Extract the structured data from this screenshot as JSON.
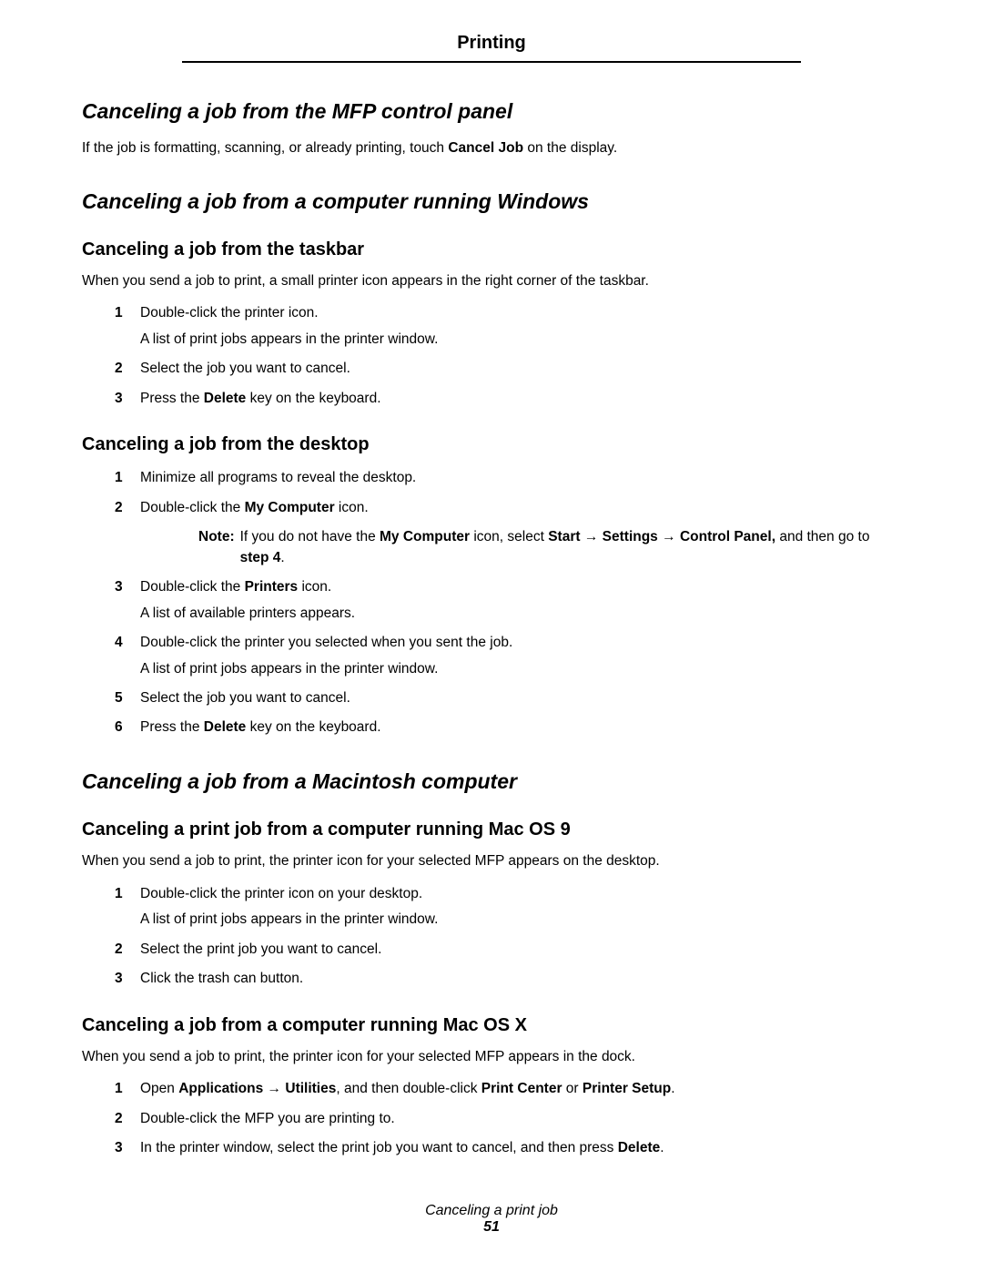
{
  "header": "Printing",
  "sections": {
    "mfp": {
      "title": "Canceling a job from the MFP control panel",
      "intro_pre": "If the job is formatting, scanning, or already printing, touch ",
      "intro_bold": "Cancel Job",
      "intro_post": " on the display."
    },
    "windows": {
      "title": "Canceling a job from a computer running Windows",
      "taskbar": {
        "title": "Canceling a job from the taskbar",
        "intro": "When you send a job to print, a small printer icon appears in the right corner of the taskbar.",
        "steps": {
          "s1a": "Double-click the printer icon.",
          "s1b": "A list of print jobs appears in the printer window.",
          "s2": "Select the job you want to cancel.",
          "s3_pre": "Press the ",
          "s3_b": "Delete",
          "s3_post": " key on the keyboard."
        }
      },
      "desktop": {
        "title": "Canceling a job from the desktop",
        "steps": {
          "s1": "Minimize all programs to reveal the desktop.",
          "s2_pre": "Double-click the ",
          "s2_b": "My Computer",
          "s2_post": " icon.",
          "note_label": "Note:",
          "note_pre": "If you do not have the ",
          "note_b1": "My Computer",
          "note_mid1": " icon, select ",
          "note_b2": "Start",
          "arrow": " → ",
          "note_b3": "Settings",
          "note_b4": "Control Panel,",
          "note_mid2": " and then go to ",
          "note_b5": "step 4",
          "note_end": ".",
          "s3_pre": "Double-click the ",
          "s3_b": "Printers",
          "s3_post": " icon.",
          "s3b": "A list of available printers appears.",
          "s4a": "Double-click the printer you selected when you sent the job.",
          "s4b": "A list of print jobs appears in the printer window.",
          "s5": "Select the job you want to cancel.",
          "s6_pre": "Press the ",
          "s6_b": "Delete",
          "s6_post": " key on the keyboard."
        }
      }
    },
    "mac": {
      "title": "Canceling a job from a Macintosh computer",
      "os9": {
        "title": "Canceling a print job from a computer running Mac OS 9",
        "intro": "When you send a job to print, the printer icon for your selected MFP appears on the desktop.",
        "steps": {
          "s1a": "Double-click the printer icon on your desktop.",
          "s1b": "A list of print jobs appears in the printer window.",
          "s2": "Select the print job you want to cancel.",
          "s3": "Click the trash can button."
        }
      },
      "osx": {
        "title": "Canceling a job from a computer running Mac OS X",
        "intro": "When you send a job to print, the printer icon for your selected MFP appears in the dock.",
        "steps": {
          "s1_pre": "Open ",
          "s1_b1": "Applications",
          "arrow": " → ",
          "s1_b2": "Utilities",
          "s1_mid": ", and then double-click ",
          "s1_b3": "Print Center",
          "s1_or": " or ",
          "s1_b4": "Printer Setup",
          "s1_post": ".",
          "s2": "Double-click the MFP you are printing to.",
          "s3_pre": "In the printer window, select the print job you want to cancel, and then press ",
          "s3_b": "Delete",
          "s3_post": "."
        }
      }
    }
  },
  "footer": {
    "title": "Canceling a print job",
    "page": "51"
  }
}
